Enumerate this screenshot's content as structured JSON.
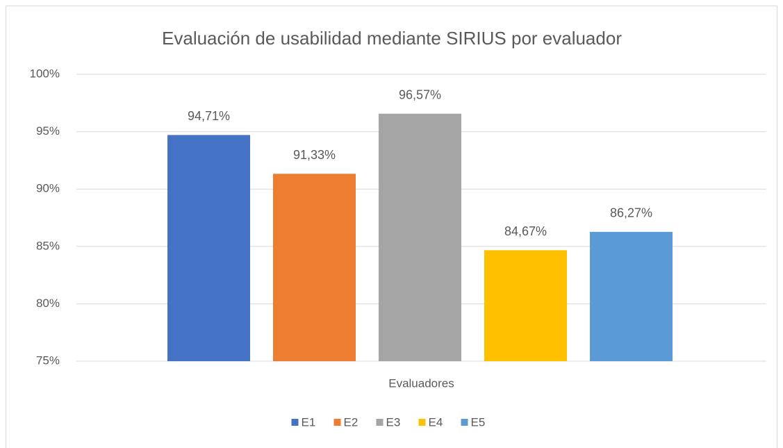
{
  "chart_data": {
    "type": "bar",
    "title": "Evaluación de usabilidad mediante SIRIUS por evaluador",
    "categories": [
      "Evaluadores"
    ],
    "series": [
      {
        "name": "E1",
        "color": "#4472c4",
        "values": [
          94.71
        ],
        "value_labels": [
          "94,71%"
        ]
      },
      {
        "name": "E2",
        "color": "#ed7d31",
        "values": [
          91.33
        ],
        "value_labels": [
          "91,33%"
        ]
      },
      {
        "name": "E3",
        "color": "#a5a5a5",
        "values": [
          96.57
        ],
        "value_labels": [
          "96,57%"
        ]
      },
      {
        "name": "E4",
        "color": "#ffc000",
        "values": [
          84.67
        ],
        "value_labels": [
          "84,67%"
        ]
      },
      {
        "name": "E5",
        "color": "#5b9bd5",
        "values": [
          86.27
        ],
        "value_labels": [
          "86,27%"
        ]
      }
    ],
    "ylim": [
      75,
      100
    ],
    "yticks": [
      {
        "value": 75,
        "label": "75%"
      },
      {
        "value": 80,
        "label": "80%"
      },
      {
        "value": 85,
        "label": "85%"
      },
      {
        "value": 90,
        "label": "90%"
      },
      {
        "value": 95,
        "label": "95%"
      },
      {
        "value": 100,
        "label": "100%"
      }
    ],
    "grid": true,
    "legend": "bottom"
  }
}
